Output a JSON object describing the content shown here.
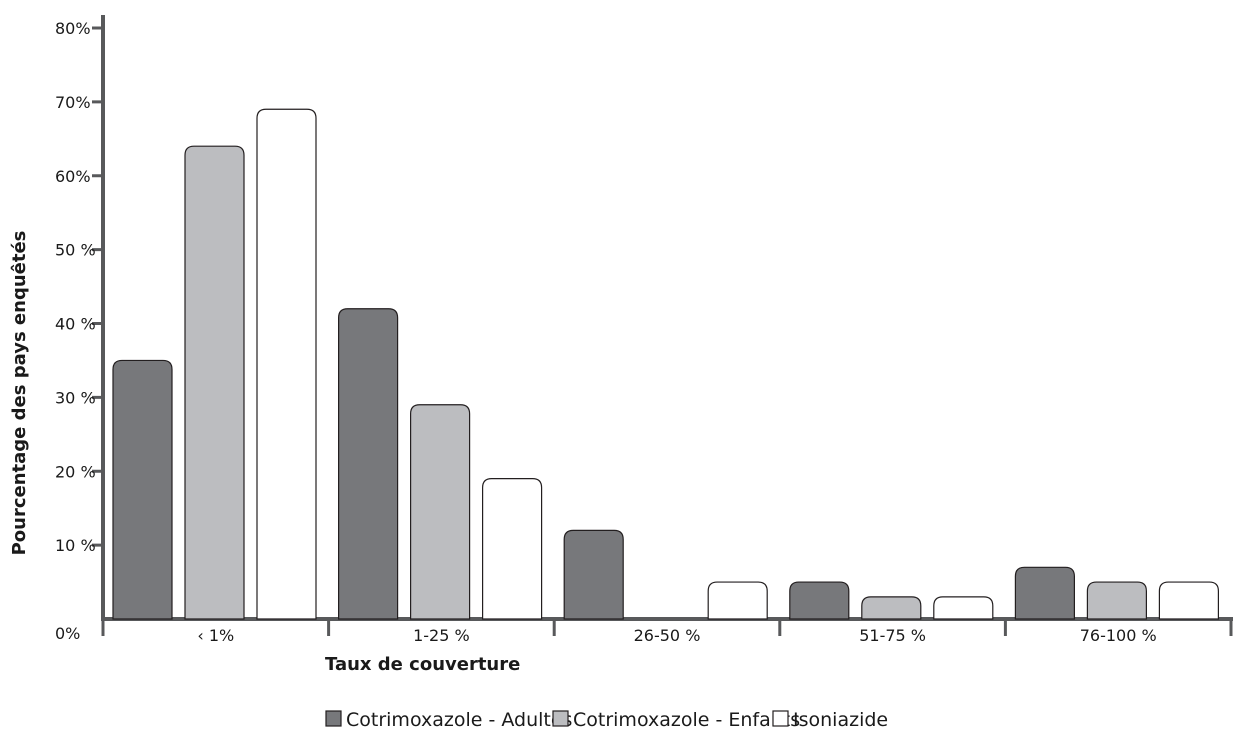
{
  "chart_data": {
    "type": "bar",
    "title": "",
    "xlabel": "Taux de couverture",
    "ylabel": "Pourcentage des pays  enquêtés",
    "categories": [
      "‹ 1%",
      "1-25 %",
      "26-50 %",
      "51-75 %",
      "76-100 %"
    ],
    "yticks": [
      "0%",
      "10 %",
      "20 %",
      "30 %",
      "40 %",
      "50 %",
      "60%",
      "70%",
      "80%"
    ],
    "ylim": [
      0,
      80
    ],
    "grid": false,
    "legend_position": "bottom",
    "series": [
      {
        "name": "Cotrimoxazole - Adultes",
        "color": "#77787b",
        "values": [
          35,
          42,
          12,
          5,
          7
        ]
      },
      {
        "name": "Cotrimoxazole - Enfants",
        "color": "#bcbdc0",
        "values": [
          64,
          29,
          0,
          3,
          5
        ]
      },
      {
        "name": "Isoniazide",
        "color": "#ffffff",
        "values": [
          69,
          19,
          5,
          3,
          5
        ]
      }
    ]
  }
}
